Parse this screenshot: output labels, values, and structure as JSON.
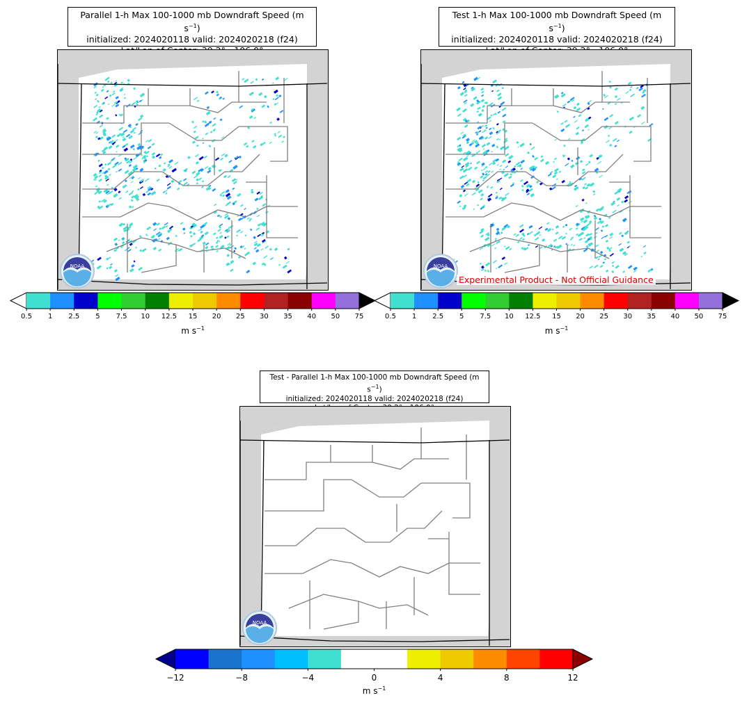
{
  "panels": [
    {
      "title_line1_pre": "Parallel 1-h Max 100-1000 mb Downdraft Speed (m s",
      "title_sup": "−1",
      "title_line1_post": ")",
      "title_line2": "initialized: 2024020118 valid: 2024020218 (f24)",
      "title_line3": "Lat/Lon of Center: 39.2°, -106.0°"
    },
    {
      "title_line1_pre": "Test 1-h Max 100-1000 mb Downdraft Speed (m s",
      "title_sup": "−1",
      "title_line1_post": ")",
      "title_line2": "initialized: 2024020118 valid: 2024020218 (f24)",
      "title_line3": "Lat/Lon of Center: 39.2°, -106.0°"
    },
    {
      "title_line1_pre": "Test - Parallel 1-h Max 100-1000 mb Downdraft Speed (m s",
      "title_sup": "−1",
      "title_line1_post": ")",
      "title_line2": "initialized: 2024020118 valid: 2024020218 (f24)",
      "title_line3": "Lat/Lon of Center: 39.2°, -106.0°"
    }
  ],
  "disclaimer": "Experimental Product - Not Official Guidance",
  "logo_text": "NOAA",
  "speed_colorbar": {
    "labels": [
      "0.5",
      "1",
      "2.5",
      "5",
      "7.5",
      "10",
      "12.5",
      "15",
      "20",
      "25",
      "30",
      "35",
      "40",
      "50",
      "75"
    ],
    "colors": [
      "#40e0d0",
      "#1e90ff",
      "#0000cd",
      "#00ff00",
      "#32cd32",
      "#008000",
      "#eeee00",
      "#eec900",
      "#ff8c00",
      "#ff0000",
      "#b22222",
      "#8b0000",
      "#ff00ff",
      "#9370db"
    ],
    "under_color": "#ffffff",
    "over_color": "#000000",
    "units_pre": "m s",
    "units_sup": "−1"
  },
  "diff_colorbar": {
    "labels": [
      "−12",
      "−8",
      "−4",
      "0",
      "4",
      "8",
      "12"
    ],
    "colors": [
      "#0000ff",
      "#1874cd",
      "#1e90ff",
      "#00bfff",
      "#40e0d0",
      "#ffffff",
      "#ffffff",
      "#eeee00",
      "#eec900",
      "#ff8c00",
      "#ff4500",
      "#ff0000"
    ],
    "under_color": "#00008b",
    "over_color": "#8b0000",
    "units_pre": "m s",
    "units_sup": "−1"
  },
  "legend_colors": {
    "county_lines": "#808080",
    "state_lines": "#000000",
    "no_data": "#d3d3d3"
  }
}
